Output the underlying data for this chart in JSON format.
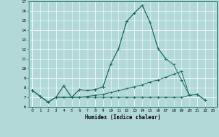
{
  "xlabel": "Humidex (Indice chaleur)",
  "bg_color": "#b2d8d8",
  "grid_color": "#ffffff",
  "line_color": "#1a6b5e",
  "xlim": [
    -0.5,
    23.5
  ],
  "ylim": [
    6,
    17
  ],
  "yticks": [
    6,
    7,
    8,
    9,
    10,
    11,
    12,
    13,
    14,
    15,
    16,
    17
  ],
  "xticks": [
    0,
    1,
    2,
    3,
    4,
    5,
    6,
    7,
    8,
    9,
    10,
    11,
    12,
    13,
    14,
    15,
    16,
    17,
    18,
    19,
    20,
    21,
    22,
    23
  ],
  "series": [
    {
      "x": [
        0,
        1,
        2,
        3,
        4,
        5,
        6,
        7,
        8,
        9,
        10,
        11,
        12,
        13,
        14,
        15,
        16,
        17
      ],
      "y": [
        7.7,
        7.1,
        6.5,
        7.0,
        8.2,
        7.0,
        7.8,
        7.7,
        7.8,
        8.1,
        10.5,
        12.1,
        14.9,
        15.8,
        16.6,
        14.8,
        12.1,
        11.0
      ]
    },
    {
      "x": [
        0,
        1,
        2,
        3,
        4,
        5,
        6,
        7,
        8,
        9,
        10,
        11,
        12,
        13,
        14,
        15,
        16,
        17,
        18,
        19,
        20,
        21,
        22
      ],
      "y": [
        7.7,
        7.1,
        6.5,
        7.0,
        8.2,
        7.0,
        7.8,
        7.7,
        7.8,
        8.1,
        10.5,
        12.1,
        14.9,
        15.8,
        16.6,
        14.8,
        12.1,
        11.0,
        10.4,
        8.8,
        7.2,
        7.3,
        6.7
      ]
    },
    {
      "x": [
        0,
        1,
        2,
        3,
        4,
        5,
        6,
        7,
        8,
        9,
        10,
        11,
        12,
        13,
        14,
        15,
        16,
        17,
        18,
        19,
        20,
        21,
        22
      ],
      "y": [
        7.7,
        7.1,
        6.5,
        7.0,
        7.0,
        7.0,
        7.0,
        7.1,
        7.2,
        7.3,
        7.5,
        7.7,
        7.9,
        8.1,
        8.3,
        8.6,
        8.8,
        9.1,
        9.4,
        9.7,
        7.2,
        7.3,
        6.7
      ]
    },
    {
      "x": [
        0,
        1,
        2,
        3,
        4,
        5,
        6,
        7,
        8,
        9,
        10,
        11,
        12,
        13,
        14,
        15,
        16,
        17,
        18,
        19,
        20,
        21,
        22
      ],
      "y": [
        7.7,
        7.1,
        6.5,
        7.0,
        7.0,
        7.0,
        7.0,
        7.0,
        7.0,
        7.0,
        7.0,
        7.0,
        7.0,
        7.0,
        7.0,
        7.0,
        7.0,
        7.0,
        7.0,
        7.0,
        7.2,
        7.3,
        6.7
      ]
    }
  ]
}
